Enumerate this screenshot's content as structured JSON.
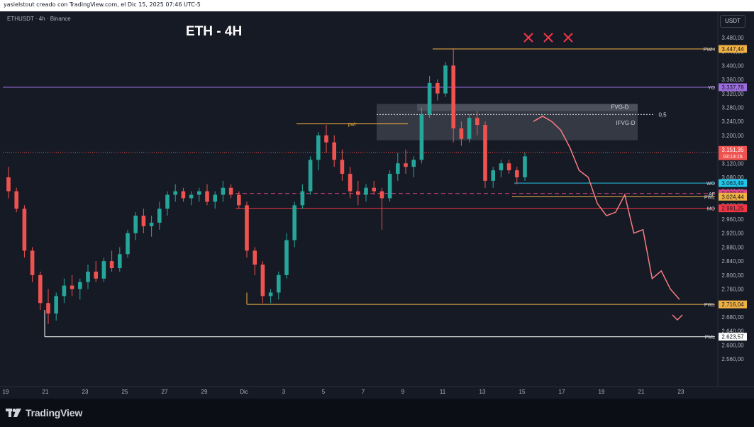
{
  "header": {
    "attribution": "yasielstout creado con TradingView.com, el Dic 15, 2025 07:46 UTC-5"
  },
  "symbol": {
    "line": "ETHUSDT · 4h · Binance",
    "currency_button": "USDT"
  },
  "title": "ETH - 4H",
  "brand": {
    "logo_text": "TradingView"
  },
  "colors": {
    "up": "#26a69a",
    "down": "#ef5350",
    "background": "#161a25",
    "projection": "#f77c80"
  },
  "chart_data": {
    "type": "candlestick",
    "title": "ETH - 4H",
    "ylim": [
      2540,
      3520
    ],
    "y_ticks": [
      "3.480,00",
      "3.440,00",
      "3.400,00",
      "3.360,00",
      "3.320,00",
      "3.280,00",
      "3.240,00",
      "3.200,00",
      "3.160,00",
      "3.120,00",
      "3.080,00",
      "3.040,00",
      "3.000,00",
      "2.960,00",
      "2.920,00",
      "2.880,00",
      "2.840,00",
      "2.800,00",
      "2.760,00",
      "2.720,00",
      "2.680,00",
      "2.640,00",
      "2.600,00",
      "2.560,00"
    ],
    "x_ticks": [
      "19",
      "21",
      "23",
      "25",
      "27",
      "29",
      "Dic",
      "3",
      "5",
      "7",
      "9",
      "11",
      "13",
      "15",
      "17",
      "19",
      "21",
      "23"
    ],
    "levels": [
      {
        "label": "PWH",
        "value": 3447.44,
        "price": "3.447,44",
        "color": "#f0b143"
      },
      {
        "label": "YO",
        "value": 3337.78,
        "price": "3.337,78",
        "color": "#9c6ce0"
      },
      {
        "label": "WO",
        "value": 3063.49,
        "price": "3.063,49",
        "color": "#22c5e8"
      },
      {
        "label": "AF",
        "value": 3033.62,
        "price": "3.033,62",
        "color": "#e0458a"
      },
      {
        "label": "PWL",
        "value": 3024.44,
        "price": "3.024,44",
        "color": "#f0b143"
      },
      {
        "label": "MO",
        "value": 2991.25,
        "price": "2.991,25",
        "color": "#f23645"
      },
      {
        "label": "PWL",
        "value": 2716.04,
        "price": "2.716,04",
        "color": "#f0b143"
      },
      {
        "label": "PML",
        "value": 2623.57,
        "price": "2.623,57",
        "color": "#ffffff"
      }
    ],
    "current_price": {
      "price": "3.151,35",
      "countdown": "03:13:15",
      "value": 3151.35
    },
    "zone_labels": {
      "fvg": "FVG-D",
      "ifvg": "IFVG-D",
      "fib": "0,5",
      "pwl_small": "pwl"
    },
    "zones": {
      "fvg": [
        3270,
        3290
      ],
      "ifvg": [
        3186,
        3290
      ],
      "fib": 3260,
      "pwl_small": 3233
    },
    "candles": [
      [
        3080,
        3110,
        3020,
        3040
      ],
      [
        3040,
        3050,
        2980,
        2990
      ],
      [
        2990,
        3000,
        2850,
        2870
      ],
      [
        2870,
        2880,
        2780,
        2800
      ],
      [
        2800,
        2810,
        2700,
        2720
      ],
      [
        2720,
        2760,
        2660,
        2690
      ],
      [
        2690,
        2750,
        2670,
        2740
      ],
      [
        2740,
        2790,
        2720,
        2770
      ],
      [
        2770,
        2800,
        2740,
        2760
      ],
      [
        2760,
        2790,
        2730,
        2780
      ],
      [
        2780,
        2830,
        2760,
        2810
      ],
      [
        2810,
        2840,
        2780,
        2790
      ],
      [
        2790,
        2850,
        2780,
        2840
      ],
      [
        2840,
        2870,
        2810,
        2820
      ],
      [
        2820,
        2880,
        2810,
        2860
      ],
      [
        2860,
        2930,
        2850,
        2920
      ],
      [
        2920,
        2980,
        2900,
        2970
      ],
      [
        2970,
        2990,
        2920,
        2940
      ],
      [
        2940,
        2970,
        2910,
        2950
      ],
      [
        2950,
        3010,
        2930,
        2990
      ],
      [
        2990,
        3040,
        2970,
        3030
      ],
      [
        3030,
        3060,
        3010,
        3040
      ],
      [
        3040,
        3050,
        3010,
        3020
      ],
      [
        3020,
        3040,
        3000,
        3030
      ],
      [
        3030,
        3050,
        3010,
        3040
      ],
      [
        3040,
        3060,
        3000,
        3010
      ],
      [
        3010,
        3040,
        2990,
        3030
      ],
      [
        3030,
        3070,
        3010,
        3050
      ],
      [
        3050,
        3060,
        3020,
        3030
      ],
      [
        3030,
        3040,
        2990,
        3000
      ],
      [
        3000,
        3010,
        2850,
        2870
      ],
      [
        2870,
        2880,
        2800,
        2830
      ],
      [
        2830,
        2840,
        2720,
        2740
      ],
      [
        2740,
        2760,
        2720,
        2750
      ],
      [
        2750,
        2810,
        2730,
        2800
      ],
      [
        2800,
        2920,
        2790,
        2900
      ],
      [
        2900,
        3010,
        2880,
        3000
      ],
      [
        3000,
        3060,
        2990,
        3040
      ],
      [
        3040,
        3140,
        3030,
        3130
      ],
      [
        3130,
        3210,
        3100,
        3200
      ],
      [
        3200,
        3230,
        3150,
        3180
      ],
      [
        3180,
        3200,
        3110,
        3130
      ],
      [
        3130,
        3160,
        3070,
        3090
      ],
      [
        3090,
        3110,
        3020,
        3040
      ],
      [
        3040,
        3070,
        3000,
        3030
      ],
      [
        3030,
        3060,
        3010,
        3050
      ],
      [
        3050,
        3070,
        3030,
        3040
      ],
      [
        3040,
        3050,
        2930,
        3020
      ],
      [
        3020,
        3100,
        3010,
        3090
      ],
      [
        3090,
        3150,
        3070,
        3120
      ],
      [
        3120,
        3160,
        3090,
        3110
      ],
      [
        3110,
        3140,
        3080,
        3130
      ],
      [
        3130,
        3280,
        3120,
        3260
      ],
      [
        3260,
        3370,
        3250,
        3350
      ],
      [
        3350,
        3360,
        3300,
        3320
      ],
      [
        3320,
        3410,
        3310,
        3400
      ],
      [
        3400,
        3450,
        3180,
        3220
      ],
      [
        3220,
        3240,
        3170,
        3190
      ],
      [
        3190,
        3260,
        3180,
        3250
      ],
      [
        3250,
        3270,
        3200,
        3230
      ],
      [
        3230,
        3240,
        3050,
        3070
      ],
      [
        3070,
        3110,
        3050,
        3100
      ],
      [
        3100,
        3130,
        3080,
        3120
      ],
      [
        3120,
        3130,
        3090,
        3100
      ],
      [
        3100,
        3110,
        3060,
        3080
      ],
      [
        3080,
        3150,
        3070,
        3140
      ]
    ],
    "projection_path": [
      [
        3240,
        3275
      ],
      [
        3220,
        3255
      ],
      [
        3240,
        3175
      ],
      [
        3200,
        3215
      ],
      [
        3165,
        3218
      ],
      [
        3065,
        3100
      ],
      [
        3080,
        3050
      ],
      [
        3110,
        3005
      ],
      [
        2970,
        3040
      ],
      [
        3010,
        2980
      ],
      [
        3030,
        2990
      ],
      [
        2950,
        2920
      ],
      [
        2930,
        2700
      ],
      [
        2798,
        2790
      ],
      [
        2812,
        2808
      ],
      [
        2715,
        2760
      ],
      [
        2730,
        2722
      ]
    ]
  }
}
